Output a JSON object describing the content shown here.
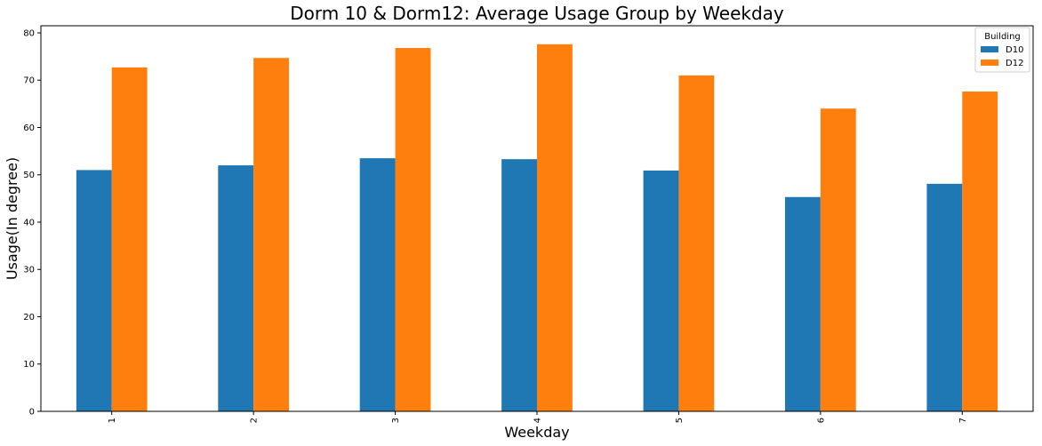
{
  "chart_data": {
    "type": "bar",
    "title": "Dorm 10 & Dorm12: Average Usage Group by Weekday",
    "xlabel": "Weekday",
    "ylabel": "Usage(In degree)",
    "categories": [
      "1",
      "2",
      "3",
      "4",
      "5",
      "6",
      "7"
    ],
    "series": [
      {
        "name": "D10",
        "color": "#1f77b4",
        "values": [
          51.0,
          52.0,
          53.5,
          53.3,
          50.9,
          45.3,
          48.1
        ]
      },
      {
        "name": "D12",
        "color": "#ff7f0e",
        "values": [
          72.7,
          74.7,
          76.8,
          77.6,
          71.0,
          64.0,
          67.6
        ]
      }
    ],
    "ylim": [
      0,
      81.5
    ],
    "yticks": [
      0,
      10,
      20,
      30,
      40,
      50,
      60,
      70,
      80
    ],
    "grid": false,
    "legend": {
      "title": "Building",
      "placement": "top-right"
    }
  }
}
